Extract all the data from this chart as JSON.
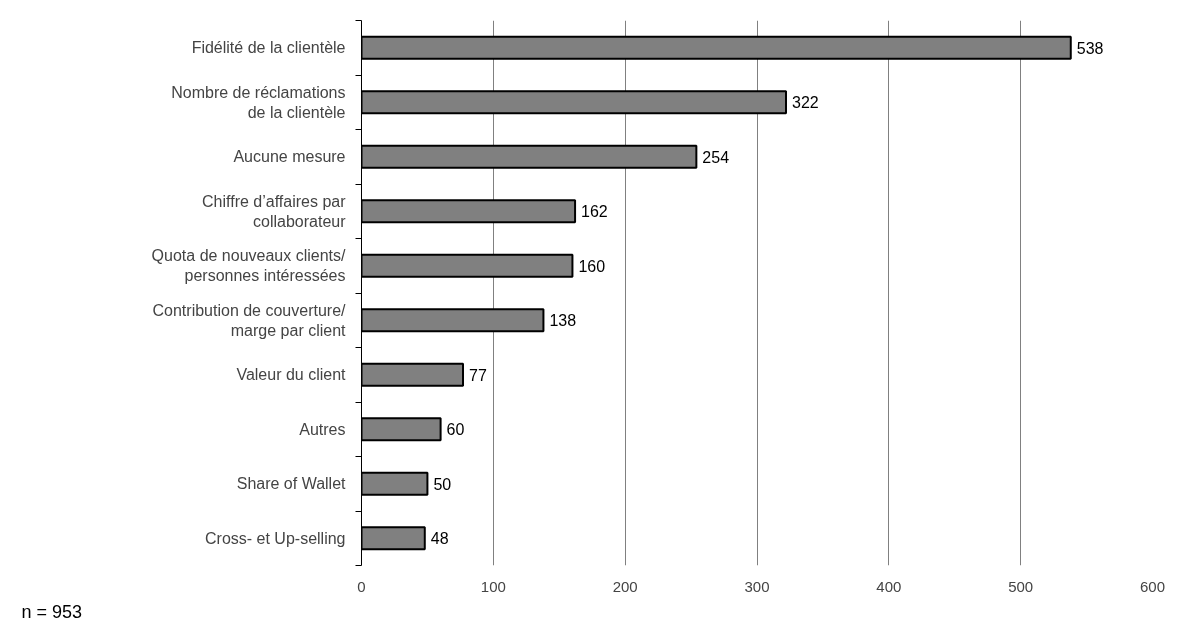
{
  "chart_data": {
    "type": "bar",
    "orientation": "horizontal",
    "categories": [
      "Fidélité de la clientèle",
      "Nombre de réclamations\nde la clientèle",
      "Aucune mesure",
      "Chiffre d’affaires par\ncollaborateur",
      "Quota de nouveaux clients/\npersonnes intéressées",
      "Contribution de couverture/\nmarge par client",
      "Valeur du client",
      "Autres",
      "Share of Wallet",
      "Cross- et Up-selling"
    ],
    "values": [
      538,
      322,
      254,
      162,
      160,
      138,
      77,
      60,
      50,
      48
    ],
    "color": "#808080",
    "xlim": [
      0,
      600
    ],
    "xticks": [
      0,
      100,
      200,
      300,
      400,
      500,
      600
    ],
    "grid": "x",
    "data_labels": true,
    "legend": false,
    "annotations": [
      "n = 953"
    ]
  }
}
